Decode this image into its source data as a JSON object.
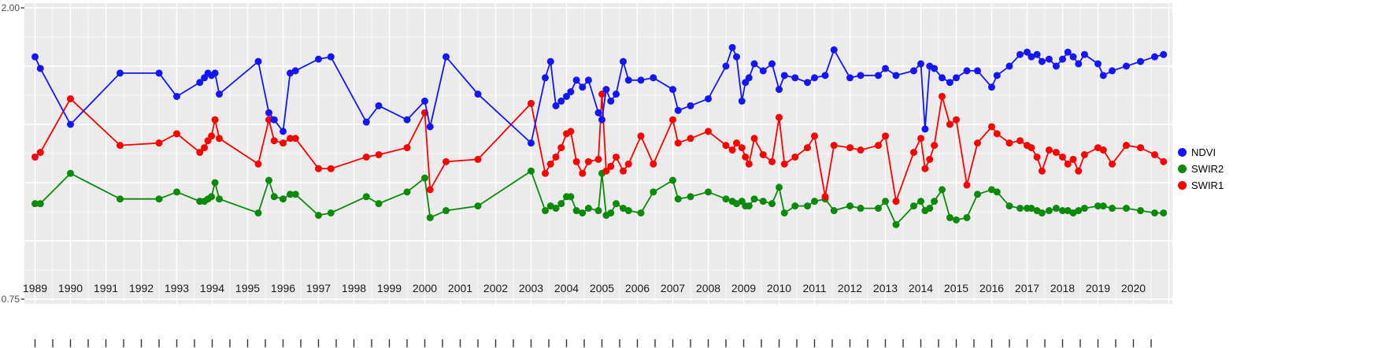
{
  "figure": {
    "background": "#FFFFFF",
    "panel_background": "#EBEBEB",
    "gridline_color": "#FFFFFF",
    "axis_text_color_y": "#4D4D4D",
    "axis_text_color_x": "#1A1A1A",
    "tick_color": "#333333"
  },
  "chart_data": {
    "type": "line",
    "title": "",
    "xlabel": "",
    "ylabel": "",
    "grid": true,
    "legend_position": "right",
    "x_range": [
      1988.7,
      2021.1
    ],
    "y_range": [
      0.75,
      2.0
    ],
    "x_tick_labels": [
      "1989",
      "1990",
      "1991",
      "1992",
      "1993",
      "1994",
      "1995",
      "1996",
      "1997",
      "1998",
      "1999",
      "2000",
      "2001",
      "2002",
      "2003",
      "2004",
      "2005",
      "2006",
      "2007",
      "2008",
      "2009",
      "2010",
      "2011",
      "2012",
      "2013",
      "2014",
      "2015",
      "2016",
      "2017",
      "2018",
      "2019",
      "2020"
    ],
    "y_tick_labels": [
      {
        "value": 2.0,
        "label": "2.00"
      },
      {
        "value": 0.75,
        "label": "0.75"
      }
    ],
    "y_gridlines_major": [
      0.75,
      1.0,
      1.25,
      1.5,
      1.75,
      2.0
    ],
    "x": [
      1989.0,
      1989.15,
      1990.0,
      1991.4,
      1992.5,
      1993.0,
      1993.65,
      1993.78,
      1993.88,
      1993.98,
      1994.08,
      1994.2,
      1995.3,
      1995.6,
      1995.75,
      1996.0,
      1996.2,
      1996.35,
      1997.0,
      1997.35,
      1998.35,
      1998.7,
      1999.5,
      2000.0,
      2000.15,
      2000.6,
      2001.5,
      2003.0,
      2003.4,
      2003.55,
      2003.7,
      2003.85,
      2004.0,
      2004.12,
      2004.28,
      2004.45,
      2004.62,
      2004.9,
      2005.0,
      2005.12,
      2005.25,
      2005.4,
      2005.6,
      2005.75,
      2006.1,
      2006.45,
      2007.0,
      2007.15,
      2007.5,
      2008.0,
      2008.5,
      2008.68,
      2008.8,
      2008.95,
      2009.05,
      2009.15,
      2009.3,
      2009.55,
      2009.8,
      2010.0,
      2010.15,
      2010.45,
      2010.8,
      2011.0,
      2011.3,
      2011.55,
      2012.0,
      2012.3,
      2012.8,
      2013.0,
      2013.3,
      2013.8,
      2014.0,
      2014.12,
      2014.25,
      2014.38,
      2014.6,
      2014.82,
      2015.0,
      2015.3,
      2015.6,
      2016.0,
      2016.15,
      2016.5,
      2016.8,
      2017.0,
      2017.12,
      2017.28,
      2017.42,
      2017.62,
      2017.82,
      2018.0,
      2018.15,
      2018.3,
      2018.45,
      2018.62,
      2019.0,
      2019.15,
      2019.4,
      2019.8,
      2020.2,
      2020.6,
      2020.85
    ],
    "series": [
      {
        "name": "NDVI",
        "color": "#1414FF",
        "values": [
          1.79,
          1.74,
          1.5,
          1.72,
          1.72,
          1.62,
          1.68,
          1.7,
          1.72,
          1.71,
          1.72,
          1.63,
          1.77,
          1.55,
          1.52,
          1.47,
          1.72,
          1.73,
          1.78,
          1.79,
          1.51,
          1.58,
          1.52,
          1.6,
          1.49,
          1.79,
          1.63,
          1.42,
          1.7,
          1.77,
          1.58,
          1.6,
          1.62,
          1.64,
          1.69,
          1.66,
          1.69,
          1.55,
          1.52,
          1.65,
          1.6,
          1.63,
          1.77,
          1.69,
          1.69,
          1.7,
          1.65,
          1.56,
          1.58,
          1.61,
          1.75,
          1.83,
          1.79,
          1.6,
          1.68,
          1.7,
          1.76,
          1.73,
          1.76,
          1.65,
          1.71,
          1.7,
          1.68,
          1.7,
          1.71,
          1.82,
          1.7,
          1.71,
          1.71,
          1.74,
          1.71,
          1.73,
          1.76,
          1.48,
          1.75,
          1.74,
          1.7,
          1.68,
          1.7,
          1.73,
          1.73,
          1.66,
          1.71,
          1.75,
          1.8,
          1.81,
          1.79,
          1.8,
          1.77,
          1.78,
          1.75,
          1.78,
          1.81,
          1.79,
          1.76,
          1.8,
          1.76,
          1.71,
          1.73,
          1.75,
          1.77,
          1.79,
          1.8
        ]
      },
      {
        "name": "SWIR2",
        "color": "#0B8A0B",
        "values": [
          1.16,
          1.16,
          1.29,
          1.18,
          1.18,
          1.21,
          1.17,
          1.17,
          1.18,
          1.19,
          1.25,
          1.18,
          1.12,
          1.26,
          1.19,
          1.18,
          1.2,
          1.2,
          1.11,
          1.12,
          1.19,
          1.16,
          1.21,
          1.27,
          1.1,
          1.13,
          1.15,
          1.3,
          1.13,
          1.15,
          1.14,
          1.16,
          1.19,
          1.19,
          1.13,
          1.12,
          1.14,
          1.13,
          1.29,
          1.11,
          1.12,
          1.16,
          1.14,
          1.13,
          1.12,
          1.21,
          1.26,
          1.18,
          1.19,
          1.21,
          1.18,
          1.17,
          1.16,
          1.17,
          1.15,
          1.15,
          1.18,
          1.17,
          1.16,
          1.23,
          1.12,
          1.15,
          1.15,
          1.17,
          1.18,
          1.13,
          1.15,
          1.14,
          1.14,
          1.17,
          1.07,
          1.15,
          1.17,
          1.13,
          1.14,
          1.17,
          1.22,
          1.1,
          1.09,
          1.1,
          1.2,
          1.22,
          1.21,
          1.15,
          1.14,
          1.14,
          1.14,
          1.13,
          1.12,
          1.13,
          1.14,
          1.13,
          1.13,
          1.12,
          1.13,
          1.14,
          1.15,
          1.15,
          1.14,
          1.14,
          1.13,
          1.12,
          1.12
        ]
      },
      {
        "name": "SWIR1",
        "color": "#FF0000",
        "values": [
          1.36,
          1.38,
          1.61,
          1.41,
          1.42,
          1.46,
          1.38,
          1.4,
          1.43,
          1.45,
          1.52,
          1.44,
          1.33,
          1.52,
          1.43,
          1.42,
          1.44,
          1.44,
          1.31,
          1.31,
          1.36,
          1.37,
          1.4,
          1.55,
          1.22,
          1.34,
          1.35,
          1.59,
          1.29,
          1.33,
          1.36,
          1.4,
          1.46,
          1.47,
          1.34,
          1.29,
          1.34,
          1.35,
          1.63,
          1.3,
          1.32,
          1.36,
          1.3,
          1.33,
          1.45,
          1.33,
          1.52,
          1.42,
          1.44,
          1.47,
          1.41,
          1.39,
          1.42,
          1.4,
          1.36,
          1.33,
          1.44,
          1.37,
          1.34,
          1.53,
          1.33,
          1.36,
          1.4,
          1.45,
          1.19,
          1.41,
          1.4,
          1.39,
          1.41,
          1.45,
          1.17,
          1.38,
          1.44,
          1.31,
          1.35,
          1.41,
          1.62,
          1.5,
          1.52,
          1.24,
          1.42,
          1.49,
          1.46,
          1.42,
          1.43,
          1.41,
          1.4,
          1.36,
          1.3,
          1.39,
          1.38,
          1.36,
          1.33,
          1.35,
          1.3,
          1.37,
          1.4,
          1.39,
          1.33,
          1.41,
          1.4,
          1.37,
          1.34
        ]
      }
    ]
  }
}
